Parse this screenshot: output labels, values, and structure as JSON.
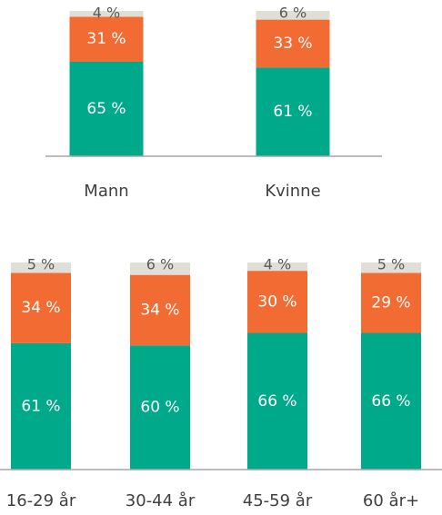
{
  "chart_data": [
    {
      "type": "bar",
      "stacked": true,
      "categories": [
        "Mann",
        "Kvinne"
      ],
      "ylim": [
        0,
        100
      ],
      "series": [
        {
          "color": "#00a98a",
          "values": [
            65,
            61
          ],
          "value_labels": [
            "65 %",
            "61 %"
          ]
        },
        {
          "color": "#f26b33",
          "values": [
            31,
            33
          ],
          "value_labels": [
            "31 %",
            "33 %"
          ]
        },
        {
          "color": "#dfdfd7",
          "values": [
            4,
            6
          ],
          "value_labels": [
            "4 %",
            "6 %"
          ]
        }
      ]
    },
    {
      "type": "bar",
      "stacked": true,
      "categories": [
        "16-29 år",
        "30-44 år",
        "45-59 år",
        "60 år+"
      ],
      "ylim": [
        0,
        100
      ],
      "series": [
        {
          "color": "#00a98a",
          "values": [
            61,
            60,
            66,
            66
          ],
          "value_labels": [
            "61 %",
            "60 %",
            "66 %",
            "66 %"
          ]
        },
        {
          "color": "#f26b33",
          "values": [
            34,
            34,
            30,
            29
          ],
          "value_labels": [
            "34 %",
            "34 %",
            "30 %",
            "29 %"
          ]
        },
        {
          "color": "#dfdfd7",
          "values": [
            5,
            6,
            4,
            5
          ],
          "value_labels": [
            "5 %",
            "6 %",
            "4 %",
            "5 %"
          ]
        }
      ]
    }
  ]
}
